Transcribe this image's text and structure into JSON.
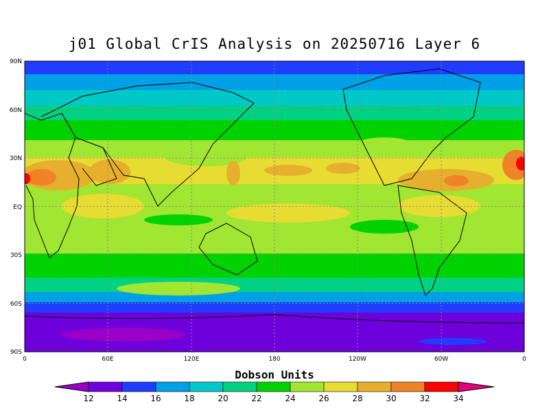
{
  "map": {
    "title": "j01 Global CrIS Analysis on 20250716 Layer 6",
    "projection": "cylindrical-equidistant",
    "lat_tick_labels": [
      "90N",
      "60N",
      "30N",
      "EQ",
      "30S",
      "60S",
      "90S"
    ],
    "lon_tick_labels": [
      "0",
      "60E",
      "120E",
      "180",
      "120W",
      "60W",
      "0"
    ],
    "gridlines": "dotted"
  },
  "colorbar": {
    "title": "Dobson Units",
    "tick_labels": [
      "12",
      "14",
      "16",
      "18",
      "20",
      "22",
      "24",
      "26",
      "28",
      "30",
      "32",
      "34"
    ],
    "colors": [
      "#9b00c8",
      "#6e00dc",
      "#1f3cff",
      "#00a0e6",
      "#00c8c8",
      "#00d282",
      "#00d200",
      "#a0e632",
      "#e6dc32",
      "#e6af2d",
      "#f08228",
      "#fa0000",
      "#e6007d"
    ],
    "extend": "both"
  },
  "chart_data": {
    "type": "heatmap",
    "title": "j01 Global CrIS Analysis on 20250716 Layer 6",
    "variable_unit": "Dobson Units",
    "latitude_band_values": [
      {
        "lat": "90N-80N",
        "value": 15
      },
      {
        "lat": "80N-70N",
        "value": 17
      },
      {
        "lat": "70N-60N",
        "value": 19
      },
      {
        "lat": "60N-50N",
        "value": 21
      },
      {
        "lat": "50N-40N",
        "value": 23
      },
      {
        "lat": "40N-30N",
        "value": 25
      },
      {
        "lat": "30N-10N",
        "value": 27
      },
      {
        "lat": "10N-10S",
        "value": 26
      },
      {
        "lat": "10S-30S",
        "value": 25
      },
      {
        "lat": "30S-40S",
        "value": 23
      },
      {
        "lat": "40S-50S",
        "value": 21
      },
      {
        "lat": "50S-60S",
        "value": 17
      },
      {
        "lat": "60S-70S",
        "value": 15
      },
      {
        "lat": "70S-90S",
        "value": 13
      }
    ],
    "maxima_regions": [
      "Saharan Africa ~32",
      "Arabian Sea ~29",
      "Caribbean / tropical Atlantic ~30"
    ],
    "minima_regions": [
      "Antarctica ~12-13"
    ]
  }
}
